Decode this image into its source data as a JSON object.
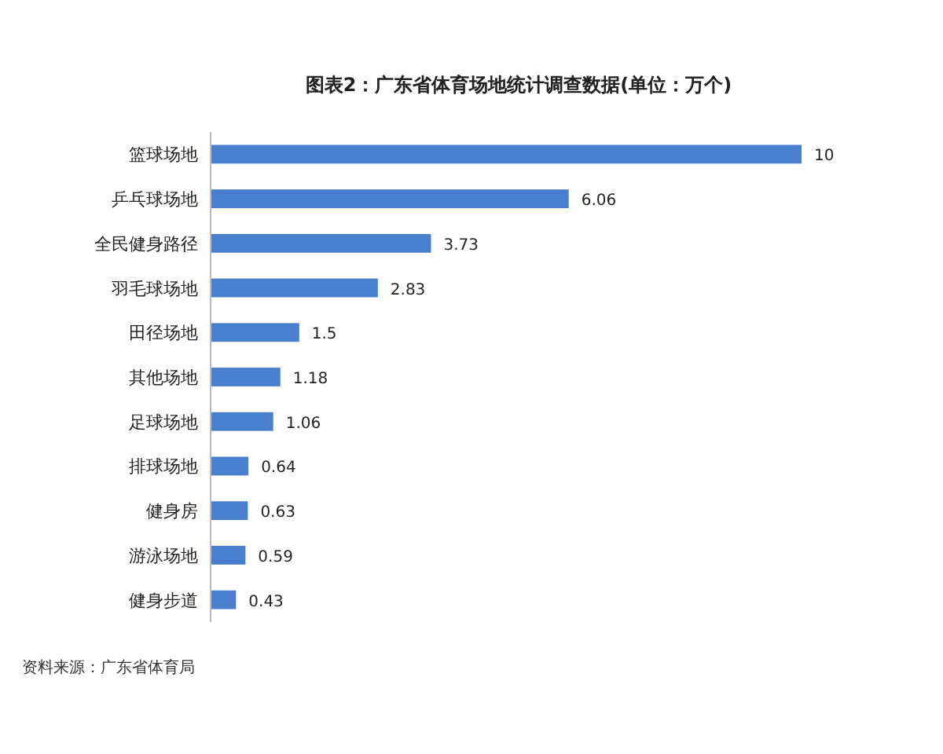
{
  "chart_data": {
    "type": "bar",
    "orientation": "horizontal",
    "title": "图表2：广东省体育场地统计调查数据(单位：万个)",
    "categories": [
      "篮球场地",
      "乒乓球场地",
      "全民健身路径",
      "羽毛球场地",
      "田径场地",
      "其他场地",
      "足球场地",
      "排球场地",
      "健身房",
      "游泳场地",
      "健身步道"
    ],
    "values": [
      10,
      6.06,
      3.73,
      2.83,
      1.5,
      1.18,
      1.06,
      0.64,
      0.63,
      0.59,
      0.43
    ],
    "color": "#4a7fd0",
    "data_labels": true,
    "annotations": [
      "资料来源：广东省体育局"
    ]
  }
}
